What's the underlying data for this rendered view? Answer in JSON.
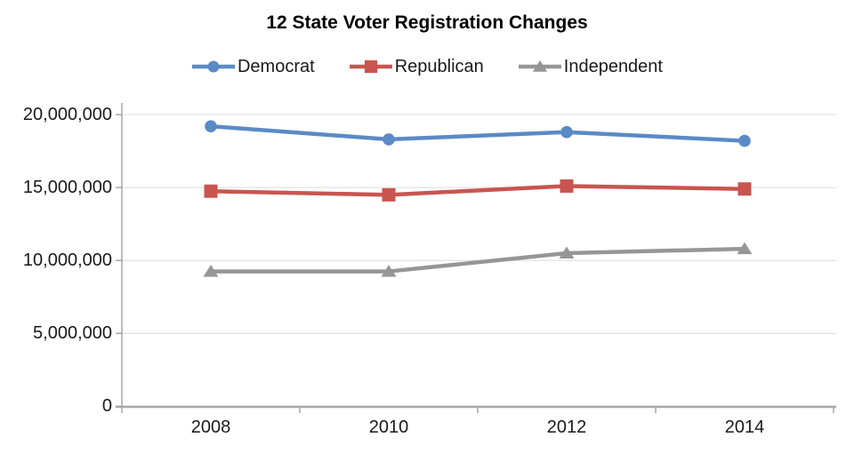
{
  "chart_data": {
    "type": "line",
    "title": "12 State Voter Registration Changes",
    "categories": [
      "2008",
      "2010",
      "2012",
      "2014"
    ],
    "series": [
      {
        "name": "Democrat",
        "color": "#5A8AC6",
        "marker": "circle",
        "values": [
          19200000,
          18300000,
          18800000,
          18200000
        ]
      },
      {
        "name": "Republican",
        "color": "#C85550",
        "marker": "square",
        "values": [
          14750000,
          14500000,
          15100000,
          14900000
        ]
      },
      {
        "name": "Independent",
        "color": "#969696",
        "marker": "triangle",
        "values": [
          9250000,
          9250000,
          10500000,
          10800000
        ]
      }
    ],
    "y_ticks": [
      "0",
      "5,000,000",
      "10,000,000",
      "15,000,000",
      "20,000,000"
    ],
    "tick_values": [
      0,
      5000000,
      10000000,
      15000000,
      20000000
    ],
    "ylim": [
      0,
      20000000
    ],
    "xlabel": "",
    "ylabel": "",
    "grid": "horizontal",
    "legend_position": "top",
    "axis_color": "#A6A6A6",
    "gridline_color": "#DCDCDC",
    "text_color": "#1A1A1A"
  }
}
